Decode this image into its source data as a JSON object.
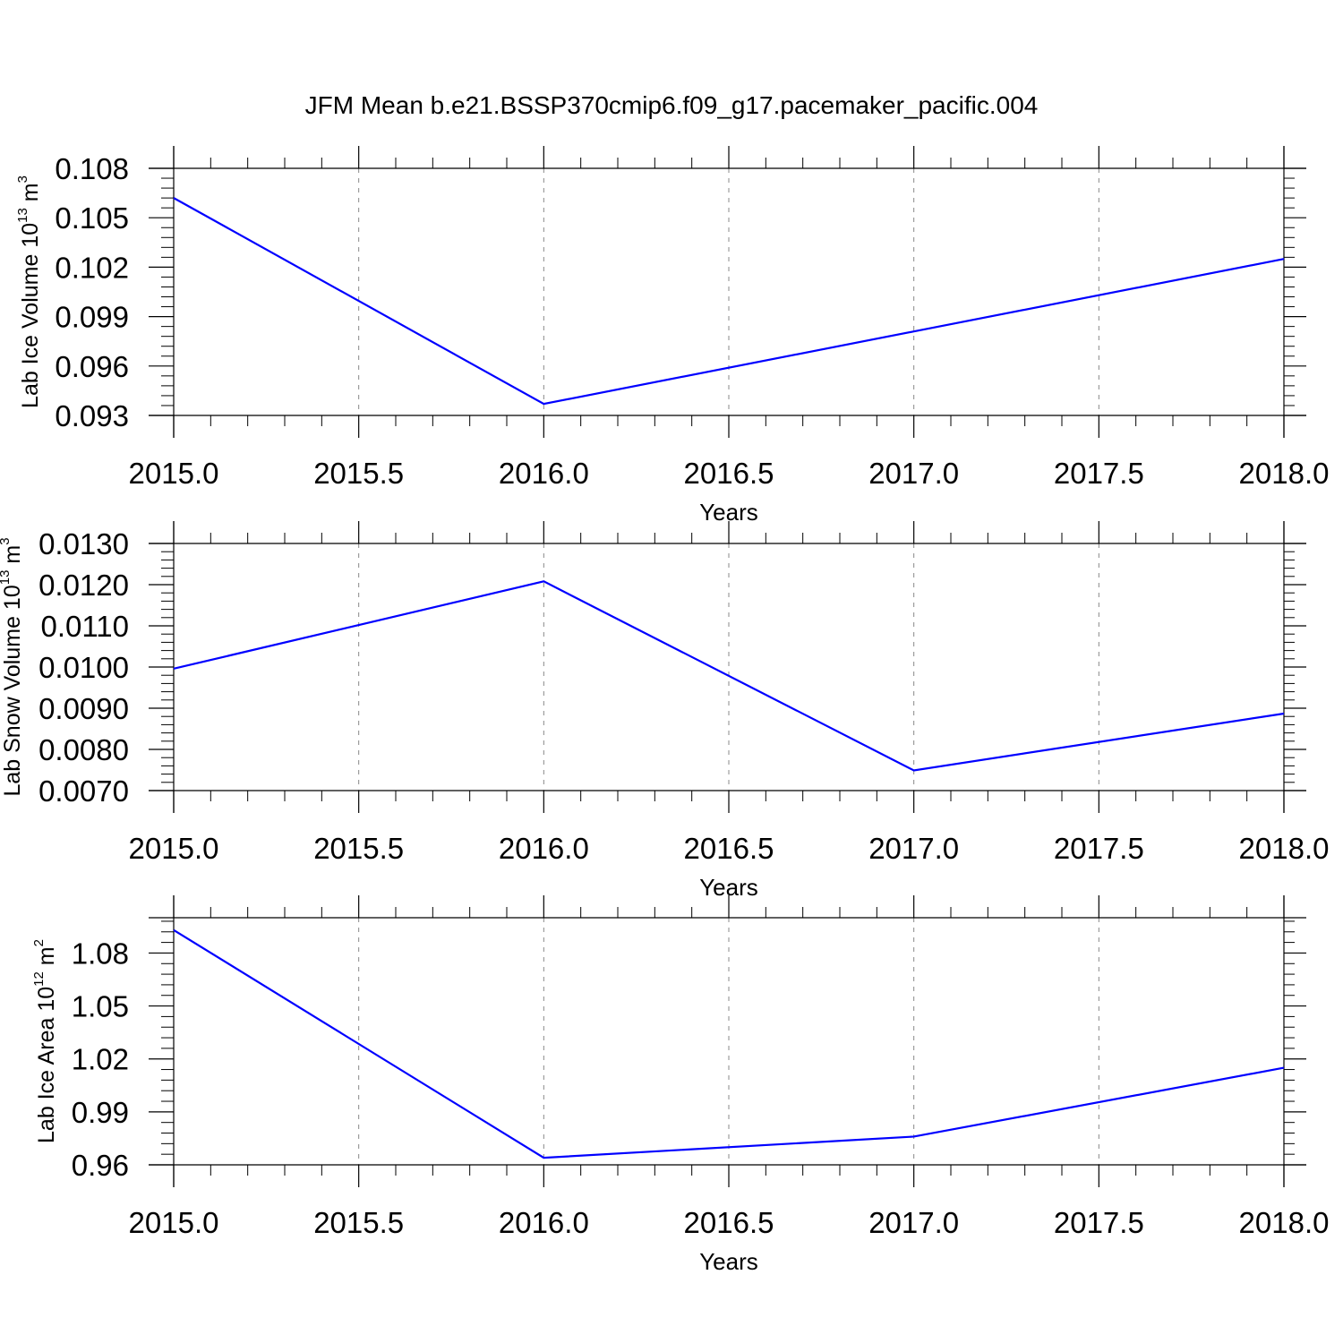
{
  "title": "JFM Mean b.e21.BSSP370cmip6.f09_g17.pacemaker_pacific.004",
  "colors": {
    "line": "#0000ff",
    "axis": "#000000",
    "grid": "#888888"
  },
  "chart_data": [
    {
      "type": "line",
      "ylabel": {
        "text": "Lab Ice Volume 10",
        "sup": "13",
        "unit": " m",
        "unit_sup": "3"
      },
      "xlabel": "Years",
      "xlim": [
        2015.0,
        2018.0
      ],
      "ylim": [
        0.093,
        0.108
      ],
      "xticks": [
        "2015.0",
        "2015.5",
        "2016.0",
        "2016.5",
        "2017.0",
        "2017.5",
        "2018.0"
      ],
      "yticks": [
        "0.093",
        "0.096",
        "0.099",
        "0.102",
        "0.105",
        "0.108"
      ],
      "x": [
        2015,
        2016,
        2017,
        2018
      ],
      "y": [
        0.1062,
        0.0937,
        0.0981,
        0.1025
      ],
      "grid": "vertical dashed"
    },
    {
      "type": "line",
      "ylabel": {
        "text": "Lab Snow Volume 10",
        "sup": "13",
        "unit": " m",
        "unit_sup": "3"
      },
      "xlabel": "Years",
      "xlim": [
        2015.0,
        2018.0
      ],
      "ylim": [
        0.007,
        0.013
      ],
      "xticks": [
        "2015.0",
        "2015.5",
        "2016.0",
        "2016.5",
        "2017.0",
        "2017.5",
        "2018.0"
      ],
      "yticks": [
        "0.0070",
        "0.0080",
        "0.0090",
        "0.0100",
        "0.0110",
        "0.0120",
        "0.0130"
      ],
      "x": [
        2015,
        2016,
        2017,
        2018
      ],
      "y": [
        0.00996,
        0.01208,
        0.00749,
        0.00887
      ],
      "grid": "vertical dashed"
    },
    {
      "type": "line",
      "ylabel": {
        "text": "Lab Ice Area 10",
        "sup": "12",
        "unit": " m",
        "unit_sup": "2"
      },
      "xlabel": "Years",
      "xlim": [
        2015.0,
        2018.0
      ],
      "ylim": [
        0.96,
        1.1
      ],
      "xticks": [
        "2015.0",
        "2015.5",
        "2016.0",
        "2016.5",
        "2017.0",
        "2017.5",
        "2018.0"
      ],
      "yticks": [
        "0.96",
        "0.99",
        "1.02",
        "1.05",
        "1.08"
      ],
      "x": [
        2015,
        2016,
        2017,
        2018
      ],
      "y": [
        1.093,
        0.964,
        0.976,
        1.015
      ],
      "grid": "vertical dashed"
    }
  ]
}
